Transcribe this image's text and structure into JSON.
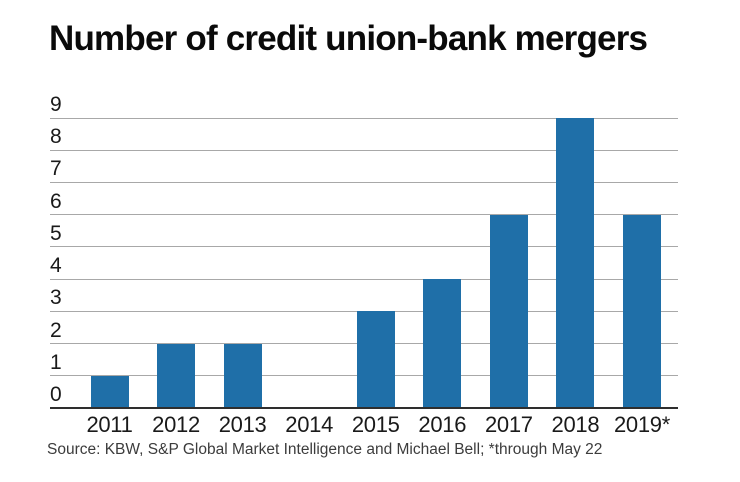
{
  "title": "Number of credit union-bank mergers",
  "source": "Source: KBW, S&P Global Market Intelligence and Michael Bell; *through May 22",
  "colors": {
    "background": "#FFFFFF",
    "bar": "#1F6FA8",
    "gridline": "#A8A8A8",
    "axis_line": "#2E2E2E",
    "title_text": "#0A0A0A",
    "label_text": "#1A1A1A",
    "source_text": "#3C3C3C"
  },
  "chart_data": {
    "type": "bar",
    "title": "Number of credit union-bank mergers",
    "categories": [
      "2011",
      "2012",
      "2013",
      "2014",
      "2015",
      "2016",
      "2017",
      "2018",
      "2019*"
    ],
    "values": [
      1,
      2,
      2,
      0,
      3,
      4,
      6,
      9,
      6
    ],
    "xlabel": "",
    "ylabel": "",
    "ylim": [
      0,
      9
    ],
    "yticks": [
      0,
      1,
      2,
      3,
      4,
      5,
      6,
      7,
      8,
      9
    ],
    "grid": true,
    "legend": false,
    "annotation": "*through May 22"
  }
}
